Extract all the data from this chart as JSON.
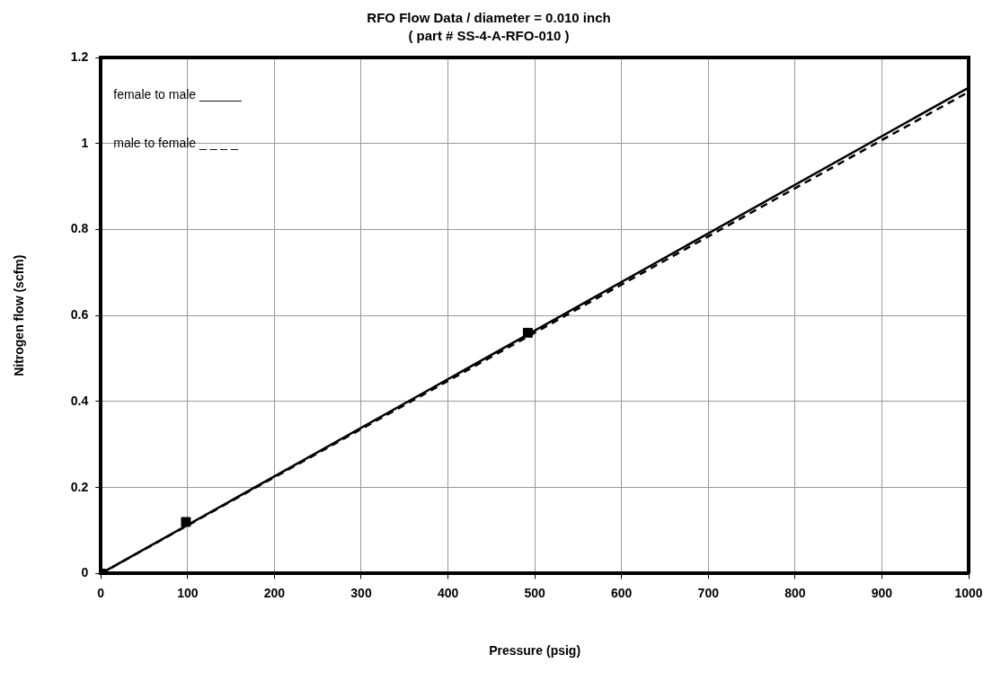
{
  "chart_data": {
    "type": "line",
    "title": "RFO Flow Data / diameter = 0.010 inch",
    "subtitle": "( part # SS-4-A-RFO-010 )",
    "xlabel": "Pressure (psig)",
    "ylabel": "Nitrogen flow (scfm)",
    "series": [
      {
        "color": "#000000",
        "line_style": "solid",
        "marker": "none",
        "x": [
          0,
          1000
        ],
        "values": [
          0,
          1.13
        ]
      },
      {
        "color": "#000000",
        "line_style": "dashed",
        "marker": "none",
        "x": [
          0,
          1000
        ],
        "values": [
          0,
          1.12
        ]
      },
      {
        "type": "scatter",
        "color": "#000000",
        "marker": "square",
        "x": [
          0,
          98,
          492
        ],
        "values": [
          0,
          0.12,
          0.56
        ]
      }
    ],
    "annotations": [
      "female to male ______",
      "male to female _ _ _ _"
    ],
    "xlim": [
      0,
      1000
    ],
    "xticks": [
      0,
      100,
      200,
      300,
      400,
      500,
      600,
      700,
      800,
      900,
      1000
    ],
    "ylim": [
      0,
      1.2
    ],
    "yticks": [
      0,
      0.2,
      0.4,
      0.6,
      0.8,
      1,
      1.2
    ],
    "grid": true,
    "legend": false
  }
}
